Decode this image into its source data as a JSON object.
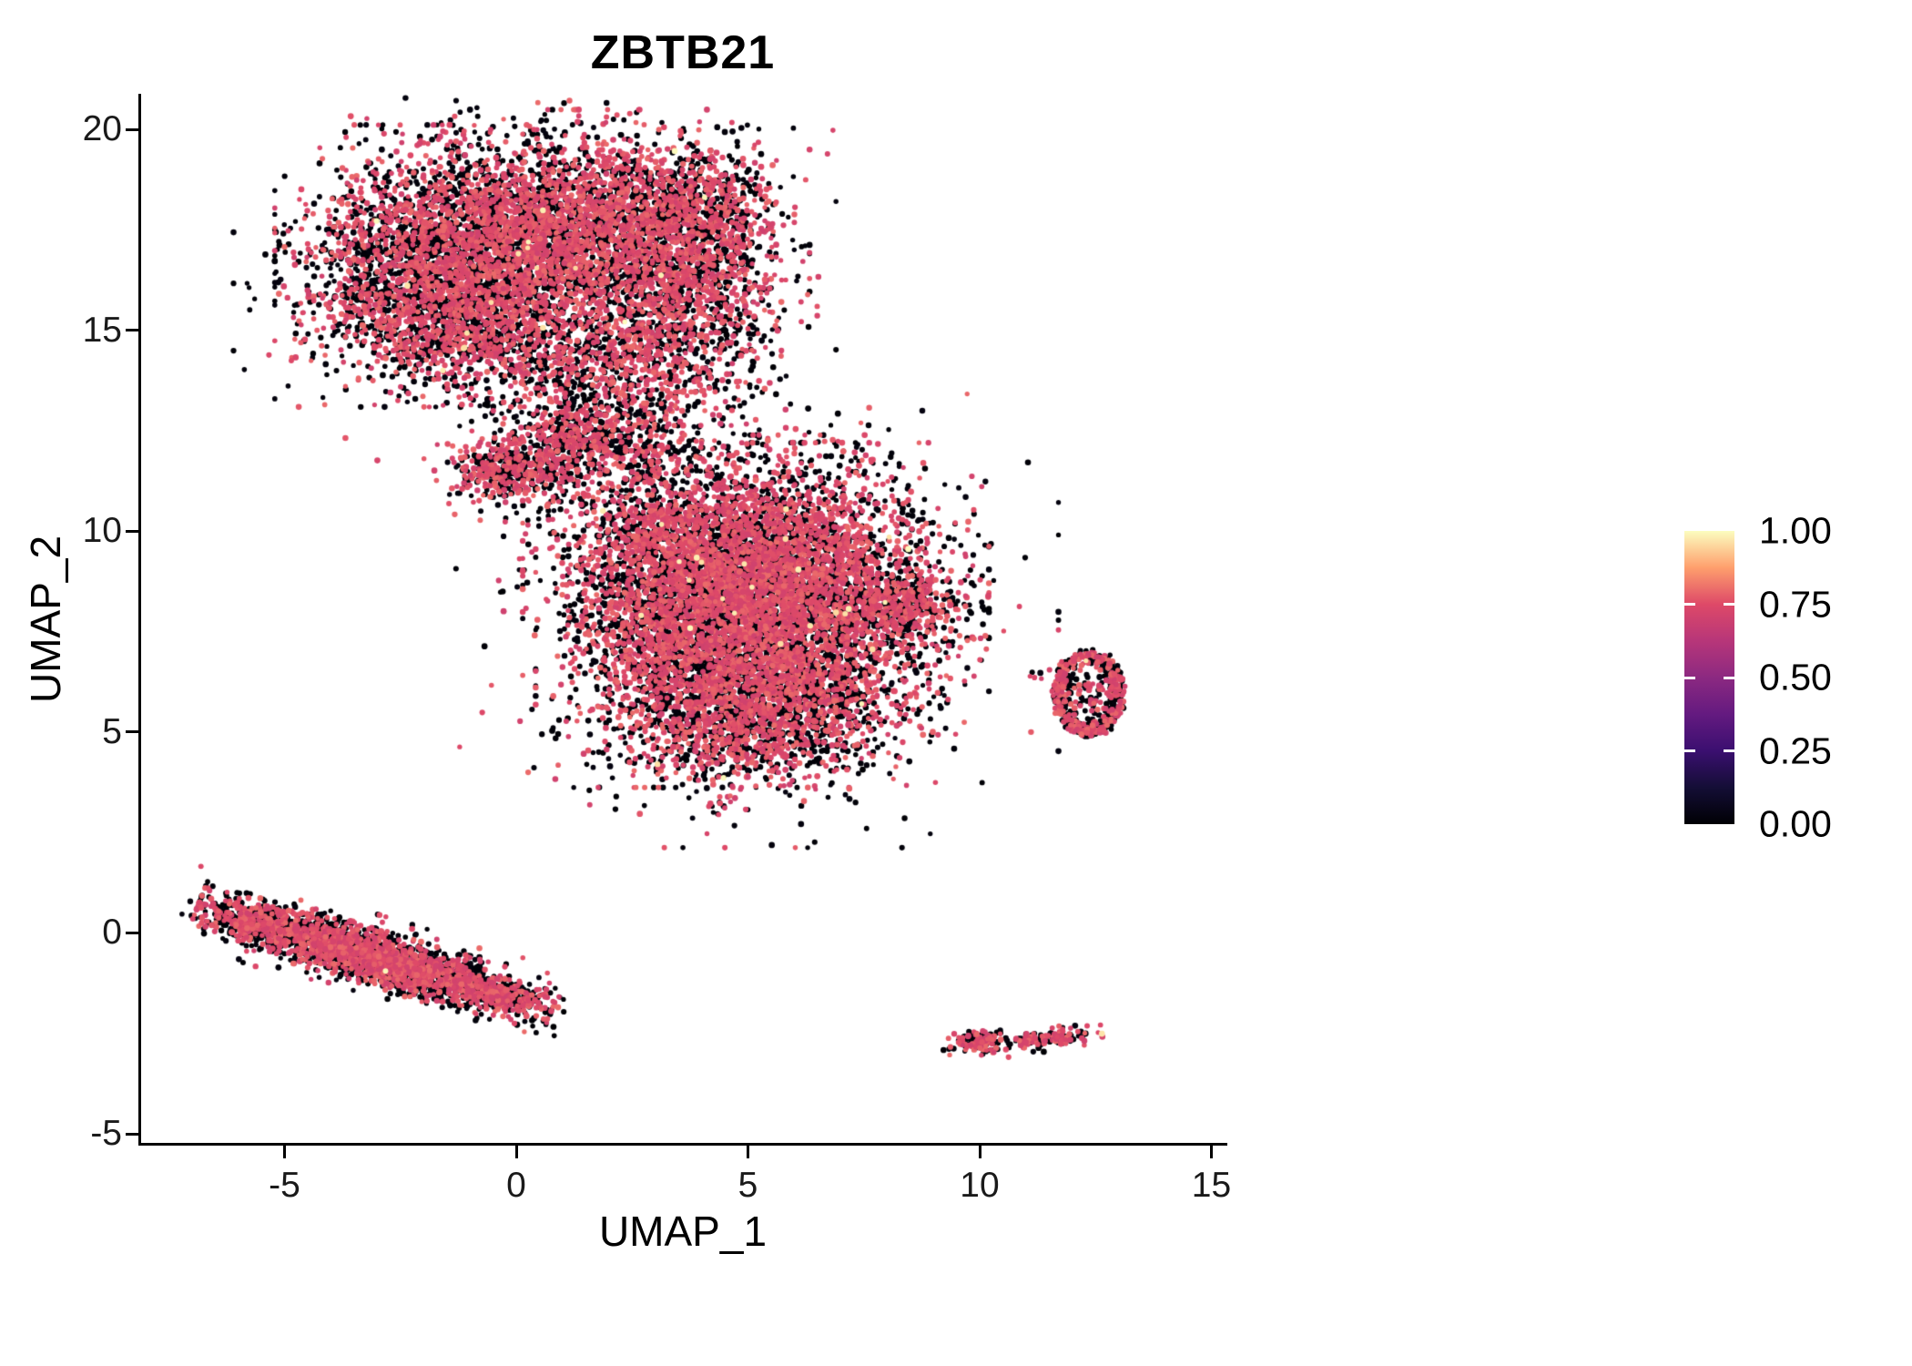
{
  "figure": {
    "background": "#ffffff"
  },
  "chart_data": {
    "type": "scatter",
    "title": "ZBTB21",
    "xlabel": "UMAP_1",
    "ylabel": "UMAP_2",
    "xlim": [
      -8.1,
      15.6
    ],
    "ylim": [
      -5.3,
      21.0
    ],
    "xticks": [
      "-5",
      "0",
      "5",
      "10",
      "15"
    ],
    "yticks": [
      "20",
      "15",
      "10",
      "5",
      "0",
      "-5"
    ],
    "grid": false,
    "legend": {
      "position": "right",
      "labels": [
        "1.00",
        "0.75",
        "0.50",
        "0.25",
        "0.00"
      ],
      "colormap": "magma",
      "stops": [
        "#000004",
        "#140e36",
        "#3b0f70",
        "#641a80",
        "#8c2981",
        "#b73679",
        "#de4968",
        "#fe9f6d",
        "#fcfdbf"
      ]
    },
    "point_style": {
      "radius_px_min": 2.6,
      "radius_px_max": 3.4,
      "low_value_range": [
        0.0,
        0.03
      ],
      "mid_value_range": [
        0.7,
        0.8
      ],
      "high_value_range": [
        0.95,
        1.0
      ]
    },
    "clusters": [
      {
        "name": "upper-blob-west",
        "shape": "gauss",
        "cx": -1.7,
        "cy": 16.6,
        "sx": 1.35,
        "sy": 1.35,
        "rot": 0,
        "n": 2400,
        "frac_mid": 0.52,
        "frac_high": 0.003
      },
      {
        "name": "upper-blob-core",
        "shape": "gauss",
        "cx": 1.0,
        "cy": 17.5,
        "sx": 1.5,
        "sy": 1.15,
        "rot": 0,
        "n": 2400,
        "frac_mid": 0.55,
        "frac_high": 0.003
      },
      {
        "name": "upper-blob-east",
        "shape": "gauss",
        "cx": 3.6,
        "cy": 16.4,
        "sx": 1.05,
        "sy": 1.45,
        "rot": 0,
        "n": 1600,
        "frac_mid": 0.55,
        "frac_high": 0.002
      },
      {
        "name": "upper-blob-east-top",
        "shape": "gauss",
        "cx": 3.9,
        "cy": 18.3,
        "sx": 0.8,
        "sy": 0.5,
        "rot": 0,
        "n": 350,
        "frac_mid": 0.5,
        "frac_high": 0
      },
      {
        "name": "upper-blob-south-lip",
        "shape": "gauss",
        "cx": 0.2,
        "cy": 14.7,
        "sx": 1.9,
        "sy": 0.7,
        "rot": -8,
        "n": 1000,
        "frac_mid": 0.5,
        "frac_high": 0.002
      },
      {
        "name": "upper-blob-halo",
        "shape": "gauss",
        "cx": 0.4,
        "cy": 16.7,
        "sx": 2.5,
        "sy": 1.9,
        "rot": 0,
        "n": 700,
        "frac_mid": 0.35,
        "frac_high": 0
      },
      {
        "name": "bridge-strip",
        "shape": "gauss",
        "cx": 0.9,
        "cy": 12.1,
        "sx": 1.05,
        "sy": 0.65,
        "rot": 25,
        "n": 750,
        "frac_mid": 0.5,
        "frac_high": 0.002
      },
      {
        "name": "bridge-sparse",
        "shape": "gauss",
        "cx": 2.7,
        "cy": 12.5,
        "sx": 1.05,
        "sy": 0.95,
        "rot": 0,
        "n": 380,
        "frac_mid": 0.42,
        "frac_high": 0
      },
      {
        "name": "bridge-west-tip",
        "shape": "gauss",
        "cx": -0.35,
        "cy": 11.5,
        "sx": 0.45,
        "sy": 0.3,
        "rot": 0,
        "n": 220,
        "frac_mid": 0.55,
        "frac_high": 0
      },
      {
        "name": "central-blob-nw",
        "shape": "gauss",
        "cx": 4.3,
        "cy": 9.4,
        "sx": 1.6,
        "sy": 1.15,
        "rot": 0,
        "n": 2600,
        "frac_mid": 0.58,
        "frac_high": 0.004
      },
      {
        "name": "central-blob-east",
        "shape": "gauss",
        "cx": 6.3,
        "cy": 8.3,
        "sx": 1.5,
        "sy": 1.5,
        "rot": 0,
        "n": 2600,
        "frac_mid": 0.58,
        "frac_high": 0.004
      },
      {
        "name": "central-blob-sw",
        "shape": "gauss",
        "cx": 3.8,
        "cy": 7.0,
        "sx": 1.3,
        "sy": 1.3,
        "rot": 0,
        "n": 2000,
        "frac_mid": 0.55,
        "frac_high": 0.003
      },
      {
        "name": "central-blob-south",
        "shape": "gauss",
        "cx": 5.5,
        "cy": 5.4,
        "sx": 1.4,
        "sy": 0.85,
        "rot": 10,
        "n": 1300,
        "frac_mid": 0.5,
        "frac_high": 0.002
      },
      {
        "name": "central-blob-east-tip",
        "shape": "gauss",
        "cx": 8.4,
        "cy": 8.2,
        "sx": 0.55,
        "sy": 0.38,
        "rot": -15,
        "n": 300,
        "frac_mid": 0.55,
        "frac_high": 0
      },
      {
        "name": "central-blob-halo",
        "shape": "gauss",
        "cx": 5.2,
        "cy": 8.1,
        "sx": 2.5,
        "sy": 2.3,
        "rot": 0,
        "n": 800,
        "frac_mid": 0.35,
        "frac_high": 0
      },
      {
        "name": "central-outlier",
        "shape": "gauss",
        "cx": 6.8,
        "cy": 3.7,
        "sx": 0.05,
        "sy": 0.05,
        "rot": 0,
        "n": 2,
        "frac_mid": 0,
        "frac_high": 0
      },
      {
        "name": "right-ring",
        "shape": "ring",
        "cx": 12.35,
        "cy": 5.95,
        "sx": 0.75,
        "sy": 1.05,
        "r1": 0.55,
        "r2": 1.0,
        "n": 500,
        "frac_mid": 0.5,
        "frac_high": 0.004
      },
      {
        "name": "right-ring-center",
        "shape": "ring",
        "cx": 12.35,
        "cy": 5.95,
        "sx": 0.75,
        "sy": 1.05,
        "r1": 0.0,
        "r2": 0.5,
        "n": 55,
        "frac_mid": 0.5,
        "frac_high": 0
      },
      {
        "name": "right-ring-outliers",
        "shape": "gauss",
        "cx": 11.2,
        "cy": 6.45,
        "sx": 0.14,
        "sy": 0.08,
        "rot": 0,
        "n": 7,
        "frac_mid": 0.5,
        "frac_high": 0
      },
      {
        "name": "lower-left-streak",
        "shape": "gauss",
        "cx": -3.05,
        "cy": -0.62,
        "sx": 1.55,
        "sy": 0.27,
        "rot": -19,
        "n": 2400,
        "frac_mid": 0.5,
        "frac_high": 0.001
      },
      {
        "name": "lower-left-streak-fringe",
        "shape": "gauss",
        "cx": -3.05,
        "cy": -0.62,
        "sx": 1.65,
        "sy": 0.4,
        "rot": -19,
        "n": 500,
        "frac_mid": 0.35,
        "frac_high": 0
      },
      {
        "name": "lower-left-streak-east",
        "shape": "gauss",
        "cx": -0.35,
        "cy": -1.5,
        "sx": 0.5,
        "sy": 0.22,
        "rot": -15,
        "n": 250,
        "frac_mid": 0.5,
        "frac_high": 0
      },
      {
        "name": "lower-left-streak-west",
        "shape": "gauss",
        "cx": -5.9,
        "cy": 0.3,
        "sx": 0.45,
        "sy": 0.26,
        "rot": -20,
        "n": 220,
        "frac_mid": 0.5,
        "frac_high": 0
      },
      {
        "name": "bottom-right-speck-west",
        "shape": "gauss",
        "cx": 10.0,
        "cy": -2.72,
        "sx": 0.3,
        "sy": 0.15,
        "rot": 0,
        "n": 150,
        "frac_mid": 0.5,
        "frac_high": 0
      },
      {
        "name": "bottom-right-speck-east",
        "shape": "gauss",
        "cx": 11.55,
        "cy": -2.62,
        "sx": 0.42,
        "sy": 0.12,
        "rot": 8,
        "n": 130,
        "frac_mid": 0.5,
        "frac_high": 0.012
      },
      {
        "name": "bottom-right-speck-mid",
        "shape": "gauss",
        "cx": 10.85,
        "cy": -2.62,
        "sx": 0.07,
        "sy": 0.05,
        "rot": 0,
        "n": 6,
        "frac_mid": 0.5,
        "frac_high": 0
      }
    ]
  }
}
